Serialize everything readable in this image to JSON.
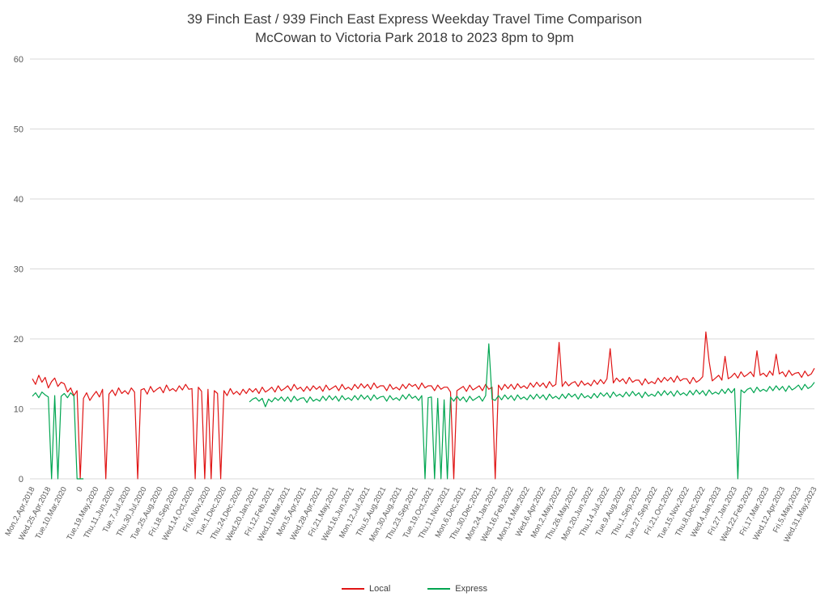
{
  "chart_data": {
    "type": "line",
    "title_line1": "39 Finch East / 939 Finch East Express Weekday Travel Time Comparison",
    "title_line2": "McCowan to Victoria Park 2018 to 2023 8pm to 9pm",
    "xlabel": "",
    "ylabel": "",
    "ylim": [
      0,
      60
    ],
    "yticks": [
      0,
      10,
      20,
      30,
      40,
      50,
      60
    ],
    "grid": true,
    "grid_color": "#d9d9d9",
    "axis_text_color": "#595959",
    "legend_position": "bottom",
    "points_per_tick": 5,
    "x_tick_labels": [
      "Mon,2,Apr,2018",
      "Wed,25,Apr,2018",
      "Tue,10,Mar,2020",
      "0",
      "Tue,19,May,2020",
      "Thu,11,Jun,2020",
      "Tue,7,Jul,2020",
      "Thu,30,Jul,2020",
      "Tue,25,Aug,2020",
      "Fri,18,Sep,2020",
      "Wed,14,Oct,2020",
      "Fri,6,Nov,2020",
      "Tue,1,Dec,2020",
      "Thu,24,Dec,2020",
      "Wed,20,Jan,2021",
      "Fri,12,Feb,2021",
      "Wed,10,Mar,2021",
      "Mon,5,Apr,2021",
      "Wed,28,Apr,2021",
      "Fri,21,May,2021",
      "Wed,16,Jun,2021",
      "Mon,12,Jul,2021",
      "Thu,5,Aug,2021",
      "Mon,30,Aug,2021",
      "Thu,23,Sep,2021",
      "Tue,19,Oct,2021",
      "Thu,11,Nov,2021",
      "Mon,6,Dec,2021",
      "Thu,30,Dec,2021",
      "Mon,24,Jan,2022",
      "Wed,16,Feb,2022",
      "Mon,14,Mar,2022",
      "Wed,6,Apr,2022",
      "Mon,2,May,2022",
      "Thu,26,May,2022",
      "Mon,20,Jun,2022",
      "Thu,14,Jul,2022",
      "Tue,9,Aug,2022",
      "Thu,1,Sep,2022",
      "Tue,27,Sep,2022",
      "Fri,21,Oct,2022",
      "Tue,15,Nov,2022",
      "Thu,8,Dec,2022",
      "Wed,4,Jan,2023",
      "Fri,27,Jan,2023",
      "Wed,22,Feb,2023",
      "Fri,17,Mar,2023",
      "Wed,12,Apr,2023",
      "Fri,5,May,2023",
      "Wed,31,May,2023"
    ],
    "series": [
      {
        "name": "Local",
        "color": "#e01414",
        "values": [
          14.3,
          13.5,
          14.8,
          13.8,
          14.5,
          13.0,
          13.9,
          14.4,
          13.2,
          13.8,
          13.6,
          12.4,
          13.0,
          11.9,
          12.6,
          0,
          11.5,
          12.3,
          11.2,
          11.9,
          12.5,
          11.7,
          12.8,
          0,
          12.1,
          12.7,
          11.9,
          13.0,
          12.2,
          12.6,
          12.1,
          13.0,
          12.4,
          0,
          12.7,
          12.9,
          12.1,
          13.2,
          12.4,
          12.8,
          13.1,
          12.3,
          13.4,
          12.6,
          12.9,
          12.5,
          13.3,
          12.7,
          13.5,
          12.8,
          12.9,
          0,
          13.1,
          12.5,
          0,
          12.8,
          0,
          12.6,
          12.2,
          0,
          12.6,
          11.9,
          12.9,
          12.1,
          12.5,
          12.0,
          12.8,
          12.2,
          12.9,
          12.4,
          12.9,
          12.2,
          13.1,
          12.4,
          12.7,
          13.1,
          12.4,
          13.3,
          12.6,
          12.9,
          13.3,
          12.6,
          13.5,
          12.8,
          13.1,
          12.5,
          13.2,
          12.6,
          13.3,
          12.8,
          13.2,
          12.5,
          13.4,
          12.7,
          13.0,
          13.3,
          12.6,
          13.5,
          12.8,
          13.1,
          12.7,
          13.5,
          12.9,
          13.6,
          13.0,
          13.5,
          12.8,
          13.7,
          13.0,
          13.3,
          13.3,
          12.6,
          13.5,
          12.8,
          13.1,
          12.7,
          13.5,
          12.9,
          13.6,
          13.2,
          13.5,
          12.8,
          13.7,
          13.0,
          13.3,
          13.3,
          12.6,
          13.4,
          12.8,
          13.1,
          13.1,
          12.4,
          0,
          12.6,
          12.9,
          13.2,
          12.5,
          13.4,
          12.7,
          13.0,
          13.3,
          12.6,
          13.5,
          12.8,
          13.1,
          0,
          13.4,
          12.7,
          13.5,
          12.9,
          13.5,
          12.8,
          13.6,
          13.0,
          13.3,
          12.9,
          13.7,
          13.1,
          13.8,
          13.2,
          13.7,
          13.0,
          13.9,
          13.2,
          13.5,
          19.5,
          13.2,
          13.9,
          13.3,
          13.7,
          13.9,
          13.2,
          14.0,
          13.4,
          13.7,
          13.3,
          14.1,
          13.5,
          14.2,
          13.6,
          14.3,
          18.6,
          13.7,
          14.4,
          13.9,
          14.3,
          13.6,
          14.5,
          13.8,
          14.1,
          14.1,
          13.4,
          14.3,
          13.6,
          13.9,
          13.6,
          14.4,
          13.8,
          14.5,
          14.0,
          14.5,
          13.8,
          14.7,
          14.0,
          14.3,
          14.3,
          13.6,
          14.5,
          13.8,
          14.1,
          14.6,
          21.0,
          16.8,
          14.0,
          14.4,
          14.8,
          14.1,
          17.5,
          14.3,
          14.6,
          15.1,
          14.4,
          15.3,
          14.6,
          14.9,
          15.3,
          14.6,
          18.3,
          14.8,
          15.1,
          14.6,
          15.4,
          14.8,
          17.8,
          15.0,
          15.3,
          14.6,
          15.5,
          14.8,
          15.1,
          15.2,
          14.5,
          15.4,
          14.7,
          15.0,
          15.8
        ]
      },
      {
        "name": "Express",
        "color": "#00a550",
        "values": [
          11.8,
          12.3,
          11.6,
          12.4,
          12.0,
          11.7,
          0,
          11.9,
          0,
          11.8,
          12.2,
          11.6,
          12.3,
          11.8,
          0,
          0,
          0,
          null,
          null,
          null,
          null,
          null,
          null,
          null,
          null,
          null,
          null,
          null,
          null,
          null,
          null,
          null,
          null,
          null,
          null,
          null,
          null,
          null,
          null,
          null,
          null,
          null,
          null,
          null,
          null,
          null,
          null,
          null,
          null,
          null,
          null,
          null,
          null,
          null,
          null,
          null,
          null,
          null,
          null,
          null,
          null,
          null,
          null,
          null,
          null,
          null,
          null,
          null,
          11.0,
          11.4,
          11.6,
          11.1,
          11.5,
          10.3,
          11.4,
          11.0,
          11.6,
          11.2,
          11.7,
          11.1,
          11.7,
          11.0,
          11.8,
          11.2,
          11.5,
          11.6,
          10.9,
          11.7,
          11.1,
          11.4,
          11.1,
          11.8,
          11.2,
          11.9,
          11.3,
          11.8,
          11.1,
          11.9,
          11.3,
          11.6,
          11.2,
          11.9,
          11.3,
          12.0,
          11.4,
          11.9,
          11.2,
          12.0,
          11.4,
          11.7,
          11.8,
          11.1,
          11.9,
          11.3,
          11.6,
          11.2,
          12.0,
          11.4,
          12.1,
          11.5,
          11.8,
          11.2,
          11.9,
          0,
          11.6,
          11.7,
          0,
          11.5,
          0,
          11.3,
          0,
          11.7,
          11.1,
          11.8,
          11.2,
          11.7,
          11.0,
          11.8,
          11.2,
          11.5,
          11.8,
          11.1,
          11.9,
          19.3,
          11.4,
          11.2,
          11.9,
          11.3,
          12.0,
          11.4,
          11.9,
          11.2,
          12.0,
          11.4,
          11.7,
          11.3,
          12.0,
          11.4,
          12.1,
          11.5,
          12.0,
          11.3,
          12.1,
          11.5,
          11.8,
          11.4,
          12.1,
          11.5,
          12.2,
          11.7,
          12.1,
          11.4,
          12.2,
          11.6,
          11.9,
          11.5,
          12.2,
          11.6,
          12.3,
          11.8,
          12.3,
          11.6,
          12.4,
          11.8,
          12.1,
          11.7,
          12.4,
          11.8,
          12.5,
          11.9,
          12.3,
          11.6,
          12.4,
          11.8,
          12.1,
          11.8,
          12.5,
          11.9,
          12.6,
          12.0,
          12.5,
          11.8,
          12.6,
          12.0,
          12.3,
          11.9,
          12.6,
          12.0,
          12.7,
          12.1,
          12.6,
          11.9,
          12.7,
          12.1,
          12.4,
          12.1,
          12.8,
          12.2,
          12.9,
          12.3,
          12.9,
          0,
          12.7,
          12.3,
          12.8,
          13.0,
          12.3,
          13.1,
          12.5,
          12.8,
          12.5,
          13.2,
          12.6,
          13.3,
          12.7,
          13.2,
          12.5,
          13.3,
          12.7,
          13.0,
          13.4,
          12.7,
          13.5,
          12.9,
          13.2,
          13.8
        ]
      }
    ]
  }
}
